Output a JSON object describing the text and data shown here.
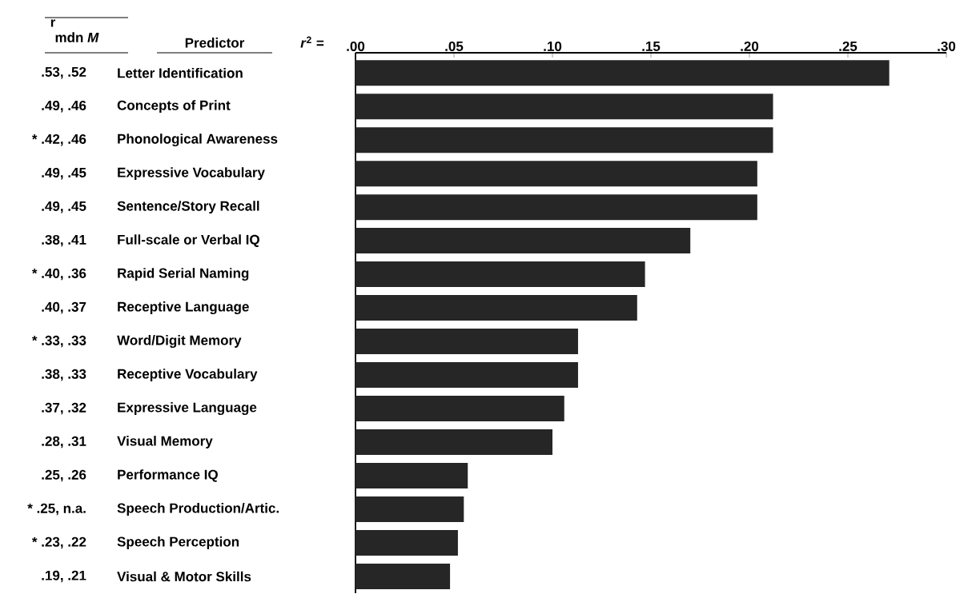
{
  "chart_data": {
    "type": "bar",
    "orientation": "horizontal",
    "ylabel": "Predictor",
    "xlabel": "*r*$^{2}$ =",
    "categories": [
      "Letter Identification",
      "Concepts of Print",
      "Phonological Awareness",
      "Expressive Vocabulary",
      "Sentence/Story Recall",
      "Full-scale or Verbal IQ",
      "Rapid Serial Naming",
      "Receptive Language",
      "Word/Digit Memory",
      "Receptive Vocabulary",
      "Expressive Language",
      "Visual Memory",
      "Performance IQ",
      "Speech Production/Artic.",
      "Speech Perception",
      "Visual & Motor Skills"
    ],
    "values": [
      0.271,
      0.212,
      0.212,
      0.204,
      0.204,
      0.17,
      0.147,
      0.143,
      0.113,
      0.113,
      0.106,
      0.1,
      0.057,
      0.055,
      0.052,
      0.048
    ],
    "color": "#262626",
    "xlim": [
      0,
      0.3
    ],
    "xticks": [
      {
        "value": 0,
        "label": ".00"
      },
      {
        "value": 0.05,
        "label": ".05"
      },
      {
        "value": 0.1,
        "label": ".10"
      },
      {
        "value": 0.15,
        "label": ".15"
      },
      {
        "value": 0.2,
        "label": ".20"
      },
      {
        "value": 0.25,
        "label": ".25"
      },
      {
        "value": 0.3,
        "label": ".30"
      }
    ],
    "annotations": [
      "r",
      "mdn *M*",
      ".53, .52",
      ".49, .46",
      "* .42, .46",
      ".49, .45",
      ".49, .45",
      ".38, .41",
      "* .40, .36",
      ".40, .37",
      "* .33, .33",
      ".38, .33",
      ".37, .32",
      ".28, .31",
      ".25, .26",
      "* .25, n.a.",
      "* .23, .22",
      ".19, .21"
    ]
  }
}
